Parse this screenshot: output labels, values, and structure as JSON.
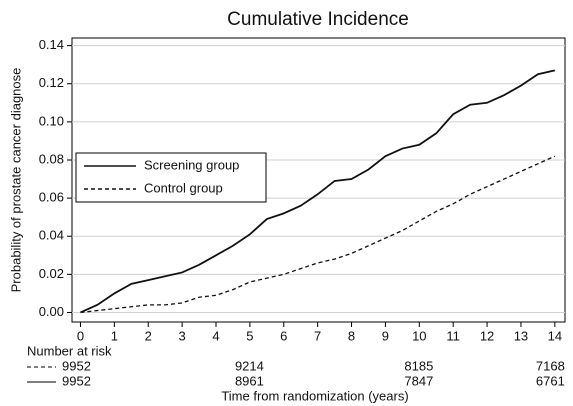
{
  "chart_data": {
    "type": "line",
    "title": "Cumulative Incidence",
    "x_label": "Time from randomization (years)",
    "y_label": "Probability of prostate cancer diagnose",
    "x": [
      0,
      0.5,
      1,
      1.5,
      2,
      2.5,
      3,
      3.5,
      4,
      4.5,
      5,
      5.5,
      6,
      6.5,
      7,
      7.5,
      8,
      8.5,
      9,
      9.5,
      10,
      10.5,
      11,
      11.5,
      12,
      12.5,
      13,
      13.5,
      14
    ],
    "series": [
      {
        "name": "Screening group",
        "color": "#111111",
        "dash": "solid",
        "values": [
          0,
          0.004,
          0.01,
          0.015,
          0.017,
          0.019,
          0.021,
          0.025,
          0.03,
          0.035,
          0.041,
          0.049,
          0.052,
          0.056,
          0.062,
          0.069,
          0.07,
          0.075,
          0.082,
          0.086,
          0.088,
          0.094,
          0.104,
          0.109,
          0.11,
          0.114,
          0.119,
          0.125,
          0.127
        ]
      },
      {
        "name": "Control group",
        "color": "#111111",
        "dash": "dashed",
        "values": [
          0,
          0.001,
          0.002,
          0.003,
          0.004,
          0.004,
          0.005,
          0.008,
          0.009,
          0.012,
          0.016,
          0.018,
          0.02,
          0.023,
          0.026,
          0.028,
          0.031,
          0.035,
          0.039,
          0.043,
          0.048,
          0.053,
          0.057,
          0.062,
          0.066,
          0.07,
          0.074,
          0.078,
          0.082
        ]
      }
    ],
    "xlim": [
      -0.25,
      14.3
    ],
    "ylim": [
      -0.005,
      0.144
    ],
    "xticks": [
      0,
      1,
      2,
      3,
      4,
      5,
      6,
      7,
      8,
      9,
      10,
      11,
      12,
      13,
      14
    ],
    "yticks": [
      {
        "value": 0,
        "label": "0.00"
      },
      {
        "value": 0.02,
        "label": "0.02"
      },
      {
        "value": 0.04,
        "label": "0.04"
      },
      {
        "value": 0.06,
        "label": "0.06"
      },
      {
        "value": 0.08,
        "label": "0.08"
      },
      {
        "value": 0.1,
        "label": "0.10"
      },
      {
        "value": 0.12,
        "label": "0.12"
      },
      {
        "value": 0.14,
        "label": "0.14"
      }
    ],
    "grid": true,
    "legend": "center left",
    "risk_table": {
      "title": "Number at risk",
      "x": [
        0,
        5,
        10,
        14
      ],
      "rows": [
        {
          "dash": "dashed",
          "values": [
            9952,
            9214,
            8185,
            7168
          ]
        },
        {
          "dash": "solid",
          "values": [
            9952,
            8961,
            7847,
            6761
          ]
        }
      ]
    }
  }
}
